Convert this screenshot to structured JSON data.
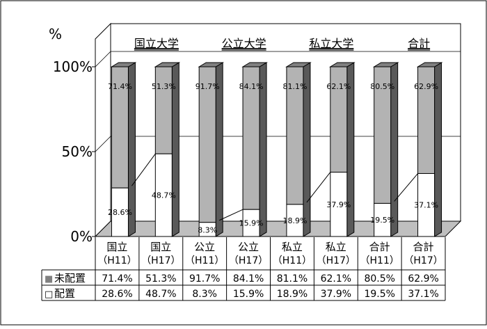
{
  "chart_data": {
    "type": "bar",
    "stacked": true,
    "y_unit": "%",
    "ylim": [
      0,
      100
    ],
    "y_ticks": [
      "0%",
      "50%",
      "100%"
    ],
    "grid": true,
    "groups": [
      "国立大学",
      "公立大学",
      "私立大学",
      "合計"
    ],
    "categories": [
      "国立\n（H11）",
      "国立\n（H17）",
      "公立\n（H11）",
      "公立\n（H17）",
      "私立\n（H11）",
      "私立\n（H17）",
      "合計\n（H11）",
      "合計\n（H17）"
    ],
    "series": [
      {
        "name": "未配置",
        "values": [
          71.4,
          51.3,
          91.7,
          84.1,
          81.1,
          62.1,
          80.5,
          62.9
        ],
        "labels": [
          "71.4%",
          "51.3%",
          "91.7%",
          "84.1%",
          "81.1%",
          "62.1%",
          "80.5%",
          "62.9%"
        ]
      },
      {
        "name": "配置",
        "values": [
          28.6,
          48.7,
          8.3,
          15.9,
          18.9,
          37.9,
          19.5,
          37.1
        ],
        "labels": [
          "28.6%",
          "48.7%",
          "8.3%",
          "15.9%",
          "18.9%",
          "37.9%",
          "19.5%",
          "37.1%"
        ]
      }
    ],
    "legend_markers": [
      "■",
      "□"
    ],
    "colors": {
      "unassigned": "#b3b3b3",
      "assigned": "#ffffff",
      "side": "#595959",
      "top": "#808080",
      "wall": "#ffffff",
      "floor": "#bfbfbf"
    }
  }
}
